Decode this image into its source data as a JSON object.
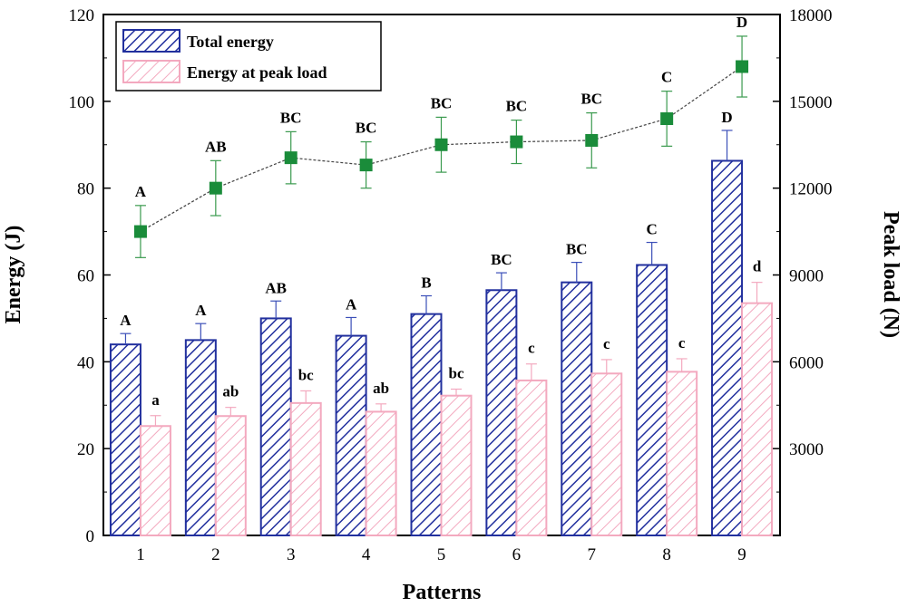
{
  "chart_data": {
    "type": "bar",
    "xlabel": "Patterns",
    "ylabel_left": "Energy (J)",
    "ylabel_right": "Peak load (N)",
    "categories": [
      "1",
      "2",
      "3",
      "4",
      "5",
      "6",
      "7",
      "8",
      "9"
    ],
    "ylim_left": [
      0,
      120
    ],
    "yticks_left": [
      0,
      20,
      40,
      60,
      80,
      100,
      120
    ],
    "ylim_right": [
      0,
      18000
    ],
    "yticks_right": [
      3000,
      6000,
      9000,
      12000,
      15000,
      18000
    ],
    "legend_position": "top-left",
    "series": [
      {
        "name": "Total energy",
        "kind": "bar",
        "axis": "left",
        "color": "#1f2f9a",
        "values": [
          44,
          45,
          50,
          46,
          51,
          56.5,
          58.3,
          62.3,
          86.3
        ],
        "errors": [
          2.5,
          3.8,
          4.0,
          4.2,
          4.2,
          4.0,
          4.6,
          5.2,
          7.0
        ],
        "labels": [
          "A",
          "A",
          "AB",
          "A",
          "B",
          "BC",
          "BC",
          "C",
          "D"
        ]
      },
      {
        "name": "Energy at peak load",
        "kind": "bar",
        "axis": "left",
        "color": "#f3a9bf",
        "values": [
          25.2,
          27.5,
          30.5,
          28.5,
          32.2,
          35.7,
          37.3,
          37.7,
          53.5
        ],
        "errors": [
          2.4,
          2.0,
          2.8,
          1.8,
          1.5,
          3.8,
          3.2,
          3.0,
          4.8
        ],
        "labels": [
          "a",
          "ab",
          "bc",
          "ab",
          "bc",
          "c",
          "c",
          "c",
          "d"
        ]
      },
      {
        "name": "Peak load",
        "kind": "line",
        "axis": "right",
        "color": "#1a8c3a",
        "values": [
          10500,
          12000,
          13050,
          12800,
          13500,
          13600,
          13650,
          14400,
          16200
        ],
        "errors": [
          900,
          950,
          900,
          800,
          950,
          750,
          950,
          950,
          1050
        ],
        "labels": [
          "A",
          "AB",
          "BC",
          "BC",
          "BC",
          "BC",
          "BC",
          "C",
          "D"
        ]
      }
    ]
  }
}
